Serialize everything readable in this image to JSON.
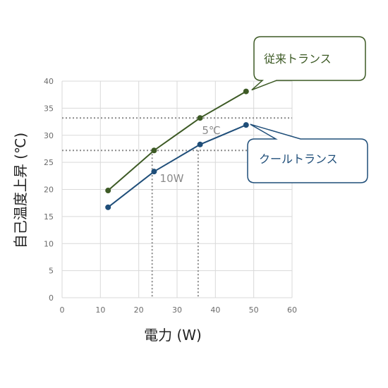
{
  "chart_data": {
    "type": "line",
    "xlabel": "電力 (W)",
    "ylabel": "自己温度上昇 (℃)",
    "xlim": [
      0,
      60
    ],
    "ylim": [
      0,
      40
    ],
    "xticks": [
      0,
      10,
      20,
      30,
      40,
      50,
      60
    ],
    "yticks": [
      0,
      5,
      10,
      15,
      20,
      25,
      30,
      35,
      40
    ],
    "grid": true,
    "series": [
      {
        "name": "従来トランス",
        "color": "#3d5a25",
        "points": [
          [
            12,
            19.8
          ],
          [
            24,
            27.2
          ],
          [
            36,
            33.2
          ],
          [
            48,
            38.1
          ]
        ]
      },
      {
        "name": "クールトランス",
        "color": "#1f4e79",
        "points": [
          [
            12,
            16.7
          ],
          [
            24,
            23.3
          ],
          [
            36,
            28.3
          ],
          [
            48,
            31.9
          ]
        ]
      }
    ],
    "reference_lines": {
      "horizontal": [
        33.2,
        27.2
      ],
      "vertical": [
        23.5,
        35.5
      ]
    },
    "annotations": [
      {
        "text": "5℃",
        "x": 36.5,
        "y": 30.2
      },
      {
        "text": "10W",
        "x": 25.5,
        "y": 21.4
      }
    ]
  }
}
